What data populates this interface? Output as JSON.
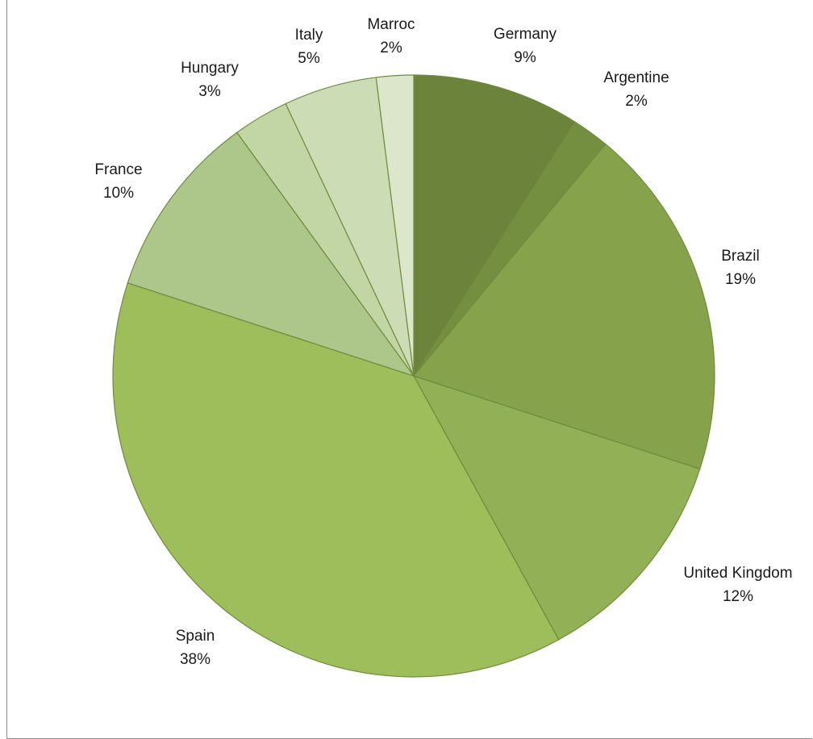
{
  "chart_data": {
    "type": "pie",
    "title": "",
    "start_angle_deg": 0,
    "direction": "clockwise",
    "slices": [
      {
        "label": "Germany",
        "value": 9,
        "display": "9%",
        "color": "#6b833b"
      },
      {
        "label": "Argentine",
        "value": 2,
        "display": "2%",
        "color": "#758f41"
      },
      {
        "label": "Brazil",
        "value": 19,
        "display": "19%",
        "color": "#86a34c"
      },
      {
        "label": "United Kingdom",
        "value": 12,
        "display": "12%",
        "color": "#92b055"
      },
      {
        "label": "Spain",
        "value": 38,
        "display": "38%",
        "color": "#9dbe5a"
      },
      {
        "label": "France",
        "value": 10,
        "display": "10%",
        "color": "#adc68a"
      },
      {
        "label": "Hungary",
        "value": 3,
        "display": "3%",
        "color": "#c2d5a4"
      },
      {
        "label": "Italy",
        "value": 5,
        "display": "5%",
        "color": "#ccdcb5"
      },
      {
        "label": "Marroc",
        "value": 2,
        "display": "2%",
        "color": "#dbe6cb"
      }
    ]
  }
}
